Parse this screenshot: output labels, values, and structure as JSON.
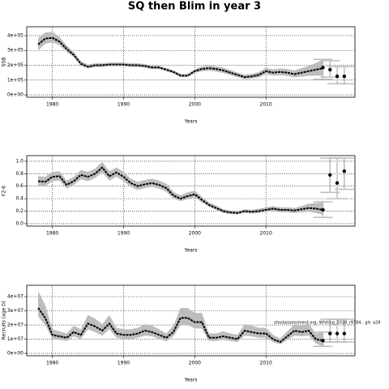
{
  "title": "SQ then Blim in year 3",
  "chart_data": [
    {
      "type": "line",
      "ylabel": "SSB",
      "xlabel": "Years",
      "x": [
        1978,
        1979,
        1980,
        1981,
        1982,
        1983,
        1984,
        1985,
        1986,
        1987,
        1988,
        1989,
        1990,
        1991,
        1992,
        1993,
        1994,
        1995,
        1996,
        1997,
        1998,
        1999,
        2000,
        2001,
        2002,
        2003,
        2004,
        2005,
        2006,
        2007,
        2008,
        2009,
        2010,
        2011,
        2012,
        2013,
        2014,
        2015,
        2016,
        2017,
        2018
      ],
      "values": [
        340000,
        380000,
        385000,
        360000,
        310000,
        270000,
        210000,
        190000,
        200000,
        200000,
        205000,
        205000,
        205000,
        200000,
        200000,
        195000,
        185000,
        185000,
        170000,
        155000,
        130000,
        130000,
        160000,
        175000,
        180000,
        175000,
        165000,
        150000,
        135000,
        120000,
        125000,
        135000,
        160000,
        150000,
        155000,
        150000,
        140000,
        150000,
        160000,
        170000,
        180000
      ],
      "lower": [
        300000,
        345000,
        355000,
        335000,
        290000,
        255000,
        195000,
        178000,
        188000,
        188000,
        193000,
        193000,
        193000,
        188000,
        188000,
        183000,
        174000,
        174000,
        160000,
        145000,
        120000,
        120000,
        148000,
        160000,
        163000,
        158000,
        148000,
        134000,
        120000,
        106000,
        110000,
        118000,
        140000,
        130000,
        133000,
        128000,
        118000,
        124000,
        128000,
        130000,
        130000
      ],
      "upper": [
        385000,
        420000,
        425000,
        390000,
        335000,
        290000,
        228000,
        205000,
        213000,
        213000,
        218000,
        218000,
        218000,
        213000,
        213000,
        208000,
        197000,
        197000,
        181000,
        166000,
        141000,
        141000,
        174000,
        192000,
        198000,
        193000,
        183000,
        168000,
        151000,
        136000,
        142000,
        154000,
        182000,
        172000,
        179000,
        174000,
        165000,
        180000,
        196000,
        215000,
        240000
      ],
      "forecast": {
        "x": [
          2018,
          2019,
          2020,
          2021
        ],
        "values": [
          185000,
          170000,
          125000,
          125000
        ],
        "lower": [
          105000,
          120000,
          75000,
          75000
        ],
        "upper": [
          240000,
          230000,
          190000,
          190000
        ]
      },
      "xlim": [
        1976.4,
        2022.5
      ],
      "xticks": [
        1980,
        1990,
        2000,
        2010
      ],
      "ylim": [
        -16000,
        460000
      ],
      "yticks": [
        {
          "value": 0,
          "label": "0e+00"
        },
        {
          "value": 100000,
          "label": "1e+05"
        },
        {
          "value": 200000,
          "label": "2e+05"
        },
        {
          "value": 300000,
          "label": "3e+05"
        },
        {
          "value": 400000,
          "label": "4e+05"
        }
      ],
      "grid": true,
      "color": "#000000",
      "band_color": "#bdbdbd",
      "interval_color": "#bdbdbd"
    },
    {
      "type": "line",
      "ylabel": "F2-6",
      "xlabel": "Years",
      "x": [
        1978,
        1979,
        1980,
        1981,
        1982,
        1983,
        1984,
        1985,
        1986,
        1987,
        1988,
        1989,
        1990,
        1991,
        1992,
        1993,
        1994,
        1995,
        1996,
        1997,
        1998,
        1999,
        2000,
        2001,
        2002,
        2003,
        2004,
        2005,
        2006,
        2007,
        2008,
        2009,
        2010,
        2011,
        2012,
        2013,
        2014,
        2015,
        2016,
        2017,
        2018
      ],
      "values": [
        0.68,
        0.67,
        0.75,
        0.76,
        0.62,
        0.68,
        0.78,
        0.75,
        0.8,
        0.9,
        0.76,
        0.82,
        0.75,
        0.65,
        0.6,
        0.63,
        0.65,
        0.62,
        0.57,
        0.45,
        0.4,
        0.44,
        0.47,
        0.38,
        0.3,
        0.25,
        0.2,
        0.18,
        0.17,
        0.2,
        0.19,
        0.2,
        0.22,
        0.24,
        0.22,
        0.22,
        0.21,
        0.23,
        0.25,
        0.24,
        0.22
      ],
      "lower": [
        0.61,
        0.6,
        0.68,
        0.69,
        0.56,
        0.62,
        0.71,
        0.68,
        0.73,
        0.82,
        0.69,
        0.75,
        0.68,
        0.59,
        0.54,
        0.57,
        0.59,
        0.56,
        0.51,
        0.4,
        0.36,
        0.39,
        0.42,
        0.34,
        0.27,
        0.22,
        0.17,
        0.15,
        0.15,
        0.17,
        0.16,
        0.17,
        0.19,
        0.2,
        0.18,
        0.18,
        0.17,
        0.18,
        0.19,
        0.17,
        0.14
      ],
      "upper": [
        0.76,
        0.75,
        0.83,
        0.84,
        0.69,
        0.75,
        0.86,
        0.83,
        0.88,
        0.99,
        0.84,
        0.9,
        0.83,
        0.72,
        0.67,
        0.7,
        0.72,
        0.69,
        0.64,
        0.51,
        0.45,
        0.5,
        0.53,
        0.43,
        0.34,
        0.29,
        0.23,
        0.21,
        0.2,
        0.23,
        0.22,
        0.24,
        0.26,
        0.28,
        0.26,
        0.26,
        0.25,
        0.28,
        0.32,
        0.33,
        0.34
      ],
      "forecast": {
        "x": [
          2018,
          2019,
          2020,
          2021
        ],
        "values": [
          0.22,
          0.78,
          0.65,
          0.84
        ],
        "lower": [
          0.1,
          0.5,
          0.4,
          0.55
        ],
        "upper": [
          0.35,
          1.05,
          1.05,
          1.05
        ]
      },
      "xlim": [
        1976.4,
        2022.5
      ],
      "xticks": [
        1980,
        1990,
        2000,
        2010
      ],
      "ylim": [
        -0.04,
        1.09
      ],
      "yticks": [
        {
          "value": 0,
          "label": "0.0"
        },
        0.2,
        0.4,
        0.6,
        0.8,
        {
          "value": 1,
          "label": "1.0"
        }
      ],
      "grid": true,
      "color": "#000000",
      "band_color": "#bdbdbd",
      "interval_color": "#bdbdbd"
    },
    {
      "type": "line",
      "ylabel": "Recruits (age 0)",
      "xlabel": "Years",
      "annotation": "stockassessment.org, Whiting_2018_r9784 , git: a29",
      "x": [
        1978,
        1979,
        1980,
        1981,
        1982,
        1983,
        1984,
        1985,
        1986,
        1987,
        1988,
        1989,
        1990,
        1991,
        1992,
        1993,
        1994,
        1995,
        1996,
        1997,
        1998,
        1999,
        2000,
        2001,
        2002,
        2003,
        2004,
        2005,
        2006,
        2007,
        2008,
        2009,
        2010,
        2011,
        2012,
        2013,
        2014,
        2015,
        2016,
        2017,
        2018
      ],
      "values": [
        32000000,
        25000000,
        13000000,
        12000000,
        11000000,
        15000000,
        13000000,
        21000000,
        19000000,
        16000000,
        21000000,
        14000000,
        13000000,
        13000000,
        14000000,
        16000000,
        15000000,
        13000000,
        11000000,
        15000000,
        25000000,
        25000000,
        22000000,
        22000000,
        11000000,
        11000000,
        12000000,
        11000000,
        10000000,
        16000000,
        15000000,
        14000000,
        14000000,
        10000000,
        8000000,
        12000000,
        16000000,
        15000000,
        16000000,
        10000000,
        9000000
      ],
      "lower": [
        26000000,
        20000000,
        10000000,
        9500000,
        8700000,
        12000000,
        10000000,
        17000000,
        15000000,
        12500000,
        17000000,
        11000000,
        10000000,
        10000000,
        11000000,
        12500000,
        12000000,
        10000000,
        8500000,
        12000000,
        20000000,
        20000000,
        17500000,
        17500000,
        8700000,
        8700000,
        9500000,
        8700000,
        8000000,
        12500000,
        12000000,
        11000000,
        11000000,
        8000000,
        6300000,
        9500000,
        12500000,
        12000000,
        12500000,
        7000000,
        5000000
      ],
      "upper": [
        44000000,
        34000000,
        17000000,
        15500000,
        14000000,
        19500000,
        17000000,
        27000000,
        24500000,
        20500000,
        27000000,
        18000000,
        17000000,
        17000000,
        18000000,
        20500000,
        19500000,
        17000000,
        14000000,
        19500000,
        32000000,
        32000000,
        28500000,
        28500000,
        14000000,
        14000000,
        15500000,
        14000000,
        13000000,
        20500000,
        19500000,
        18000000,
        18000000,
        13000000,
        10500000,
        15500000,
        20500000,
        19500000,
        21000000,
        14000000,
        15000000
      ],
      "forecast": {
        "x": [
          2018,
          2019,
          2020,
          2021
        ],
        "values": [
          9000000,
          14000000,
          14000000,
          14000000
        ],
        "lower": [
          5000000,
          8000000,
          8000000,
          8000000
        ],
        "upper": [
          15000000,
          24000000,
          24000000,
          24000000
        ]
      },
      "xlim": [
        1976.4,
        2022.5
      ],
      "xticks": [
        1980,
        1990,
        2000,
        2010
      ],
      "ylim": [
        -1700000,
        48000000
      ],
      "yticks": [
        {
          "value": 0,
          "label": "0e+00"
        },
        {
          "value": 10000000,
          "label": "1e+07"
        },
        {
          "value": 20000000,
          "label": "2e+07"
        },
        {
          "value": 30000000,
          "label": "3e+07"
        },
        {
          "value": 40000000,
          "label": "4e+07"
        }
      ],
      "grid": true,
      "color": "#000000",
      "band_color": "#bdbdbd",
      "interval_color": "#bdbdbd"
    }
  ]
}
